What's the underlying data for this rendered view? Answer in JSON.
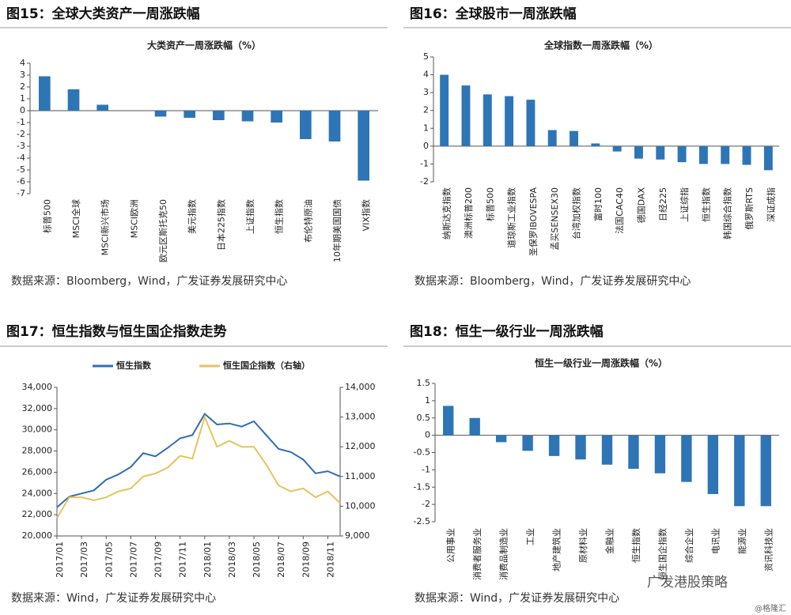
{
  "chart_data": [
    {
      "type": "bar",
      "figure": "图15：全球大类资产一周涨跌幅",
      "title": "大类资产一周涨跌幅（%）",
      "categories": [
        "标普500",
        "MSCI全球",
        "MSCI新兴市场",
        "MSCI欧洲",
        "欧元区斯托克50",
        "美元指数",
        "日本225指数",
        "上证指数",
        "恒生指数",
        "布伦特原油",
        "10年期美国国债",
        "VIX指数"
      ],
      "values": [
        2.9,
        1.8,
        0.5,
        0,
        -0.5,
        -0.6,
        -0.8,
        -0.9,
        -1.0,
        -2.4,
        -2.6,
        -5.9
      ],
      "color": "#2e75b6",
      "ylim": [
        -7,
        4
      ],
      "yticks": [
        -7,
        -6,
        -5,
        -4,
        -3,
        -2,
        -1,
        0,
        1,
        2,
        3,
        4
      ],
      "source": "数据来源：Bloomberg，Wind，广发证券发展研究中心"
    },
    {
      "type": "bar",
      "figure": "图16：全球股市一周涨跌幅",
      "title": "全球指数一周涨跌幅（%）",
      "categories": [
        "纳斯达克指数",
        "澳洲标普200",
        "标普500",
        "道琼斯工业指数",
        "圣保罗IBOVESPA",
        "孟买SENSEX30",
        "台湾加权指数",
        "富时100",
        "法国CAC40",
        "德国DAX",
        "日经225",
        "上证综指",
        "恒生指数",
        "韩国综合指数",
        "俄罗斯RTS",
        "深证成指"
      ],
      "values": [
        4.0,
        3.4,
        2.9,
        2.8,
        2.6,
        0.9,
        0.85,
        0.15,
        -0.3,
        -0.7,
        -0.75,
        -0.9,
        -1.0,
        -1.0,
        -1.05,
        -1.35
      ],
      "color": "#2e75b6",
      "ylim": [
        -2,
        5
      ],
      "yticks": [
        -2,
        -1,
        0,
        1,
        2,
        3,
        4,
        5
      ],
      "source": "数据来源：Bloomberg，Wind，广发证券发展研究中心"
    },
    {
      "type": "line",
      "figure": "图17：恒生指数与恒生国企指数走势",
      "x": [
        "2017/01",
        "2017/02",
        "2017/03",
        "2017/04",
        "2017/05",
        "2017/06",
        "2017/07",
        "2017/08",
        "2017/09",
        "2017/10",
        "2017/11",
        "2017/12",
        "2018/01",
        "2018/02",
        "2018/03",
        "2018/04",
        "2018/05",
        "2018/06",
        "2018/07",
        "2018/08",
        "2018/09",
        "2018/10",
        "2018/11",
        "2018/12"
      ],
      "xticks": [
        "2017/01",
        "2017/03",
        "2017/05",
        "2017/07",
        "2017/09",
        "2017/11",
        "2018/01",
        "2018/03",
        "2018/05",
        "2018/07",
        "2018/09",
        "2018/11"
      ],
      "series": [
        {
          "name": "恒生指数",
          "color": "#2e6db4",
          "values": [
            22700,
            23700,
            24000,
            24300,
            25300,
            25800,
            26500,
            27800,
            27500,
            28300,
            29200,
            29500,
            31500,
            30500,
            30600,
            30300,
            30800,
            29500,
            28200,
            27900,
            27200,
            25900,
            26100,
            25600
          ]
        },
        {
          "name": "恒生国企指数（右轴）",
          "color": "#e6c35c",
          "axis": "y2",
          "values": [
            9600,
            10300,
            10300,
            10200,
            10300,
            10500,
            10600,
            11000,
            11100,
            11300,
            11700,
            11600,
            13000,
            12000,
            12200,
            12000,
            12000,
            11400,
            10700,
            10500,
            10600,
            10300,
            10500,
            10100
          ]
        }
      ],
      "ylim": [
        20000,
        34000
      ],
      "yticks": [
        {
          "value": 20000,
          "label": "20,000"
        },
        {
          "value": 22000,
          "label": "22,000"
        },
        {
          "value": 24000,
          "label": "24,000"
        },
        {
          "value": 26000,
          "label": "26,000"
        },
        {
          "value": 28000,
          "label": "28,000"
        },
        {
          "value": 30000,
          "label": "30,000"
        },
        {
          "value": 32000,
          "label": "32,000"
        },
        {
          "value": 34000,
          "label": "34,000"
        }
      ],
      "y2lim": [
        9000,
        14000
      ],
      "y2ticks": [
        {
          "value": 9000,
          "label": "9,000"
        },
        {
          "value": 10000,
          "label": "10,000"
        },
        {
          "value": 11000,
          "label": "11,000"
        },
        {
          "value": 12000,
          "label": "12,000"
        },
        {
          "value": 13000,
          "label": "13,000"
        },
        {
          "value": 14000,
          "label": "14,000"
        }
      ],
      "legend": "top-left",
      "source": "数据来源：Wind，广发证券发展研究中心"
    },
    {
      "type": "bar",
      "figure": "图18：恒生一级行业一周涨跌幅",
      "title": "恒生一级行业一周涨跌幅（%）",
      "categories": [
        "公用事业",
        "消费者服务业",
        "消费品制造业",
        "工业",
        "地产建筑业",
        "原材料业",
        "金融业",
        "恒生指数",
        "恒生国企指数",
        "综合企业",
        "电讯业",
        "能源业",
        "资讯科技业"
      ],
      "values": [
        0.85,
        0.5,
        -0.2,
        -0.45,
        -0.6,
        -0.7,
        -0.85,
        -0.97,
        -1.1,
        -1.35,
        -1.7,
        -2.05,
        -2.05
      ],
      "color": "#2e75b6",
      "ylim": [
        -2.5,
        1.5
      ],
      "yticks": [
        -2.5,
        -2,
        -1.5,
        -1,
        -0.5,
        0,
        0.5,
        1,
        1.5
      ],
      "source": "数据来源：Wind，广发证券发展研究中心"
    }
  ],
  "watermark": "广发港股策略",
  "credit": "@格隆汇"
}
